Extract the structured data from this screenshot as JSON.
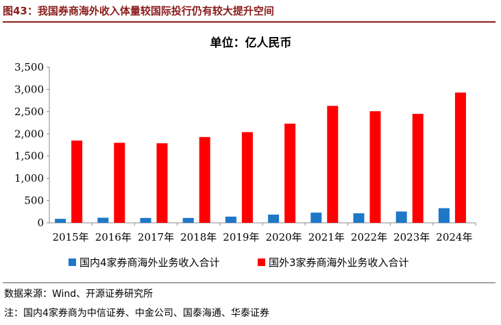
{
  "figure": {
    "title": "图43：我国券商海外收入体量较国际投行仍有较大提升空间",
    "source": "数据来源：Wind、开源证券研究所",
    "note": "注：国内4家券商为中信证券、中金公司、国泰海通、华泰证券"
  },
  "chart_data": {
    "type": "bar",
    "title": "单位：亿人民币",
    "xlabel": "",
    "ylabel": "",
    "categories": [
      "2015年",
      "2016年",
      "2017年",
      "2018年",
      "2019年",
      "2020年",
      "2021年",
      "2022年",
      "2023年",
      "2024年"
    ],
    "series": [
      {
        "name": "国内4家券商海外业务收入合计",
        "color": "#1f77c8",
        "values": [
          90,
          115,
          110,
          110,
          140,
          185,
          230,
          215,
          255,
          330
        ]
      },
      {
        "name": "国外3家券商海外业务收入合计",
        "color": "#ff0000",
        "values": [
          1850,
          1800,
          1790,
          1930,
          2040,
          2230,
          2630,
          2510,
          2450,
          2930
        ]
      }
    ],
    "ylim": [
      0,
      3500
    ],
    "yticks": [
      "0",
      "500",
      "1,000",
      "1,500",
      "2,000",
      "2,500",
      "3,000",
      "3,500"
    ],
    "ytick_values": [
      0,
      500,
      1000,
      1500,
      2000,
      2500,
      3000,
      3500
    ],
    "grid": false,
    "legend": "bottom"
  }
}
